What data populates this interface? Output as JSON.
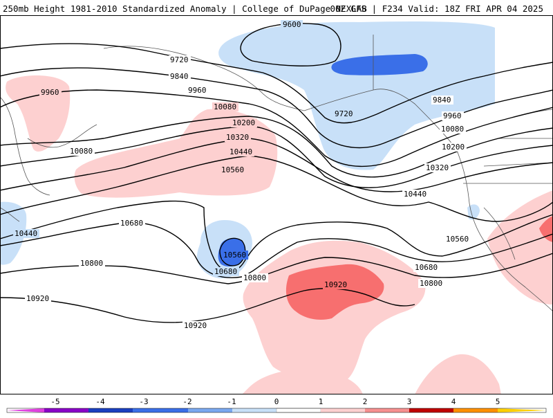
{
  "header": {
    "left_title": "250mb Height 1981-2010 Standardized Anomaly | College of DuPage NEXLAB",
    "right_title": "00Z GFS | F234 Valid: 18Z FRI APR 04 2025"
  },
  "contour_labels": [
    "9600",
    "9720",
    "9720",
    "9840",
    "9840",
    "9960",
    "9960",
    "9960",
    "10080",
    "10080",
    "10080",
    "10200",
    "10200",
    "10320",
    "10320",
    "10440",
    "10440",
    "10440",
    "10560",
    "10560",
    "10560",
    "10680",
    "10680",
    "10680",
    "10800",
    "10800",
    "10800",
    "10920",
    "10920",
    "10920"
  ],
  "colorbar": {
    "ticks": [
      "-5",
      "-4",
      "-3",
      "-2",
      "-1",
      "0",
      "1",
      "2",
      "3",
      "4",
      "5"
    ],
    "colors": [
      "#e040e0",
      "#8a00c8",
      "#1a3fc0",
      "#3a6fe8",
      "#7aa8f0",
      "#c8e0f8",
      "#ffffff",
      "#fdd0d0",
      "#f79090",
      "#e83a3a",
      "#c00000",
      "#ff9000",
      "#ffd000"
    ]
  },
  "colors": {
    "anomaly_pos_1": "#fdd0d0",
    "anomaly_pos_2": "#f76f6f",
    "anomaly_neg_1": "#c8e0f8",
    "anomaly_neg_2": "#3a6fe8",
    "contour": "#000000",
    "coastline": "#555555"
  }
}
